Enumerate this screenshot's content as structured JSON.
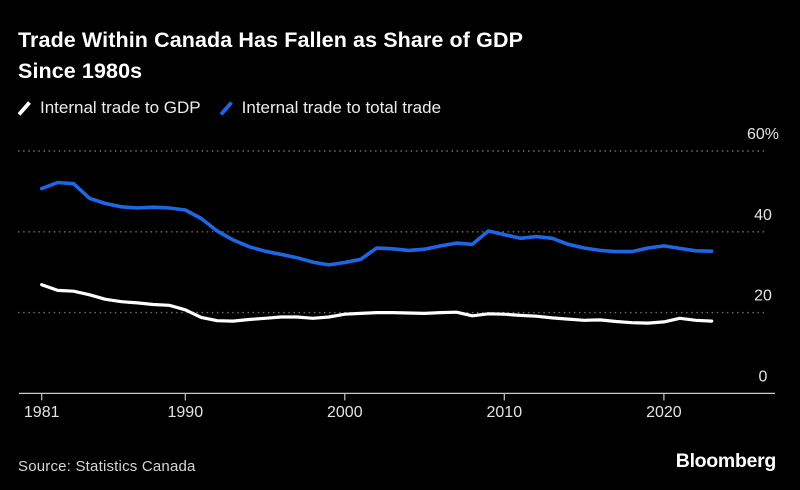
{
  "header": {
    "title_line1": "Trade Within Canada Has Fallen as Share of GDP",
    "title_line2": "Since 1980s"
  },
  "legend": {
    "items": [
      {
        "label": "Internal trade to GDP",
        "color": "#ffffff"
      },
      {
        "label": "Internal trade to total trade",
        "color": "#1f66e5"
      }
    ]
  },
  "footer": {
    "source": "Source: Statistics Canada",
    "logo": "Bloomberg"
  },
  "colors": {
    "background": "#000000",
    "grid": "#6e6e6e",
    "axis": "#c9c9c9",
    "tick_label": "#e3e3e3",
    "series_white": "#ffffff",
    "series_blue": "#1f66e5"
  },
  "chart_data": {
    "type": "line",
    "title": "Trade Within Canada Has Fallen as Share of GDP Since 1980s",
    "ylabel": "",
    "xlabel": "",
    "ylim": [
      0,
      63
    ],
    "xlim": [
      1979.5,
      2027
    ],
    "grid": "horizontal-dotted",
    "legend_position": "top",
    "x": [
      1981,
      1982,
      1983,
      1984,
      1985,
      1986,
      1987,
      1988,
      1989,
      1990,
      1991,
      1992,
      1993,
      1994,
      1995,
      1996,
      1997,
      1998,
      1999,
      2000,
      2001,
      2002,
      2003,
      2004,
      2005,
      2006,
      2007,
      2008,
      2009,
      2010,
      2011,
      2012,
      2013,
      2014,
      2015,
      2016,
      2017,
      2018,
      2019,
      2020,
      2021,
      2022,
      2023
    ],
    "x_ticks": [
      {
        "value": 1981,
        "label": "1981"
      },
      {
        "value": 1990,
        "label": "1990"
      },
      {
        "value": 2000,
        "label": "2000"
      },
      {
        "value": 2010,
        "label": "2010"
      },
      {
        "value": 2020,
        "label": "2020"
      }
    ],
    "y_ticks": [
      {
        "value": 60,
        "label": "60%"
      },
      {
        "value": 40,
        "label": "40"
      },
      {
        "value": 20,
        "label": "20"
      },
      {
        "value": 0,
        "label": "0"
      }
    ],
    "series": [
      {
        "name": "Internal trade to GDP",
        "color": "#ffffff",
        "values": [
          26.9,
          25.5,
          25.3,
          24.4,
          23.3,
          22.7,
          22.4,
          22.0,
          21.8,
          20.7,
          18.8,
          18.0,
          17.9,
          18.3,
          18.6,
          18.9,
          18.9,
          18.6,
          18.9,
          19.6,
          19.8,
          20.0,
          20.0,
          19.9,
          19.8,
          20.0,
          20.1,
          19.2,
          19.7,
          19.6,
          19.3,
          19.1,
          18.7,
          18.4,
          18.1,
          18.2,
          17.8,
          17.5,
          17.4,
          17.7,
          18.6,
          18.1,
          17.9
        ]
      },
      {
        "name": "Internal trade to total trade",
        "color": "#1f66e5",
        "values": [
          50.7,
          52.2,
          51.9,
          48.3,
          47.0,
          46.2,
          45.9,
          46.1,
          45.9,
          45.4,
          43.3,
          40.2,
          38.0,
          36.3,
          35.2,
          34.4,
          33.6,
          32.5,
          31.8,
          32.4,
          33.2,
          36.0,
          35.8,
          35.4,
          35.7,
          36.5,
          37.2,
          36.9,
          40.2,
          39.3,
          38.4,
          38.8,
          38.4,
          36.9,
          36.0,
          35.4,
          35.1,
          35.1,
          36.0,
          36.5,
          35.9,
          35.3,
          35.2
        ]
      }
    ]
  }
}
